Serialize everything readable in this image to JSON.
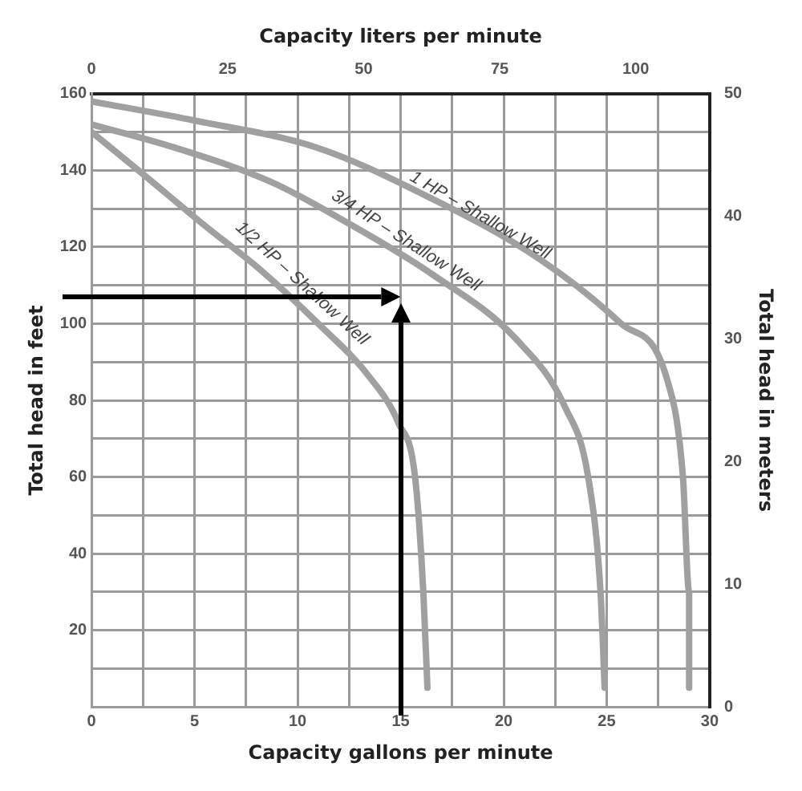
{
  "chart_data": {
    "type": "line",
    "xlabel": "Capacity gallons per minute",
    "ylabel": "Total head in feet",
    "y2label": "Total head in meters",
    "x2label": "Capacity liters per minute",
    "xlim": [
      0,
      30
    ],
    "xticks": [
      0,
      {
        "value": 2.5,
        "label": null
      },
      5,
      {
        "value": 7.5,
        "label": null
      },
      10,
      {
        "value": 12.5,
        "label": null
      },
      15,
      {
        "value": 17.5,
        "label": null
      },
      20,
      {
        "value": 22.5,
        "label": null
      },
      25,
      {
        "value": 27.5,
        "label": null
      },
      30
    ],
    "ylim": [
      0,
      160
    ],
    "yticks": [
      {
        "value": 10,
        "label": null
      },
      20,
      {
        "value": 30,
        "label": null
      },
      40,
      {
        "value": 50,
        "label": null
      },
      60,
      {
        "value": 70,
        "label": null
      },
      80,
      {
        "value": 90,
        "label": null
      },
      100,
      {
        "value": 110,
        "label": null
      },
      120,
      {
        "value": 130,
        "label": null
      },
      140,
      {
        "value": 150,
        "label": null
      },
      160
    ],
    "x2lim": [
      0,
      113.6
    ],
    "x2ticks": [
      0,
      25,
      50,
      75,
      100
    ],
    "y2lim": [
      0,
      50
    ],
    "y2ticks": [
      0,
      10,
      20,
      30,
      40,
      50
    ],
    "grid": true,
    "legend": false,
    "marker": "none",
    "line_style": "solid",
    "series": [
      {
        "name": "1 HP – Shallow Well",
        "color": "#a0a0a0",
        "x": [
          0,
          5,
          10.9,
          16,
          21.7,
          25.7,
          27.9,
          28.7,
          29,
          29
        ],
        "values": [
          158,
          153,
          146,
          134,
          117,
          100,
          86,
          60,
          30,
          5
        ]
      },
      {
        "name": "3/4 HP – Shallow Well",
        "color": "#a0a0a0",
        "x": [
          0,
          4,
          8.7,
          12.2,
          16.5,
          20.6,
          23,
          24.1,
          24.7,
          24.9
        ],
        "values": [
          152,
          146,
          137,
          127,
          113,
          96,
          78,
          60,
          30,
          5
        ]
      },
      {
        "name": "1/2 HP – Shallow Well",
        "color": "#a0a0a0",
        "x": [
          0,
          2.5,
          5.4,
          8.2,
          11,
          13.5,
          14.9,
          15.7,
          16.1,
          16.3
        ],
        "values": [
          150,
          139,
          126,
          114,
          100,
          86,
          74,
          60,
          30,
          5
        ]
      }
    ]
  }
}
